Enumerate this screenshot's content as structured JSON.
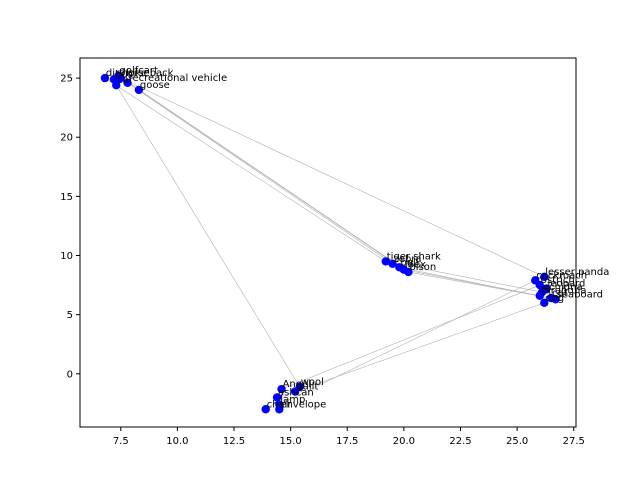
{
  "chart_data": {
    "type": "scatter",
    "title": "",
    "xlabel": "",
    "ylabel": "",
    "xlim": [
      5.7,
      27.6
    ],
    "ylim": [
      -4.5,
      26.7
    ],
    "xticks": [
      7.5,
      10.0,
      12.5,
      15.0,
      17.5,
      20.0,
      22.5,
      25.0,
      27.5
    ],
    "xtick_labels": [
      "7.5",
      "10.0",
      "12.5",
      "15.0",
      "17.5",
      "20.0",
      "22.5",
      "25.0",
      "27.5"
    ],
    "yticks": [
      0,
      5,
      10,
      15,
      20,
      25
    ],
    "ytick_labels": [
      "0",
      "5",
      "10",
      "15",
      "20",
      "25"
    ],
    "grid": false,
    "point_color": "#0000ff",
    "line_color": "#b0b0b0",
    "points": [
      {
        "label": "dirt bike",
        "x": 6.8,
        "y": 25.0
      },
      {
        "label": "golfcart",
        "x": 7.4,
        "y": 25.2
      },
      {
        "label": "horseback",
        "x": 7.5,
        "y": 25.0
      },
      {
        "label": "bus",
        "x": 7.2,
        "y": 24.9
      },
      {
        "label": "recreational vehicle",
        "x": 7.8,
        "y": 24.6
      },
      {
        "label": "goose",
        "x": 8.3,
        "y": 24.0
      },
      {
        "label": "car",
        "x": 7.3,
        "y": 24.4
      },
      {
        "label": "tiger shark",
        "x": 19.2,
        "y": 9.5
      },
      {
        "label": "zebra",
        "x": 19.5,
        "y": 9.3
      },
      {
        "label": "bull",
        "x": 19.8,
        "y": 9.0
      },
      {
        "label": "ibex",
        "x": 20.0,
        "y": 8.8
      },
      {
        "label": "bison",
        "x": 20.2,
        "y": 8.6
      },
      {
        "label": "lesser panda",
        "x": 26.2,
        "y": 8.2
      },
      {
        "label": "cockroach",
        "x": 25.8,
        "y": 7.9
      },
      {
        "label": "ostrich",
        "x": 26.0,
        "y": 7.5
      },
      {
        "label": "leopard",
        "x": 26.3,
        "y": 7.2
      },
      {
        "label": "echidna",
        "x": 26.1,
        "y": 6.9
      },
      {
        "label": "tarantula",
        "x": 26.0,
        "y": 6.6
      },
      {
        "label": "cat",
        "x": 26.5,
        "y": 6.4
      },
      {
        "label": "seaboard",
        "x": 26.7,
        "y": 6.3
      },
      {
        "label": "dog",
        "x": 26.2,
        "y": 6.0
      },
      {
        "label": "wool",
        "x": 15.4,
        "y": -1.1
      },
      {
        "label": "Angel",
        "x": 14.6,
        "y": -1.3
      },
      {
        "label": "quilt",
        "x": 15.2,
        "y": -1.5
      },
      {
        "label": "ashcan",
        "x": 14.4,
        "y": -2.0
      },
      {
        "label": "lamp",
        "x": 14.5,
        "y": -2.6
      },
      {
        "label": "envelope",
        "x": 14.5,
        "y": -3.0
      },
      {
        "label": "chair",
        "x": 13.9,
        "y": -3.0
      }
    ],
    "edges": [
      [
        "dirt bike",
        "tiger shark"
      ],
      [
        "golfcart",
        "bison"
      ],
      [
        "recreational vehicle",
        "zebra"
      ],
      [
        "goose",
        "ibex"
      ],
      [
        "horseback",
        "lesser panda"
      ],
      [
        "car",
        "wool"
      ],
      [
        "bull",
        "seaboard"
      ],
      [
        "bison",
        "cat"
      ],
      [
        "tiger shark",
        "echidna"
      ],
      [
        "ibex",
        "tarantula"
      ],
      [
        "cockroach",
        "lamp"
      ],
      [
        "ostrich",
        "Angel"
      ],
      [
        "dog",
        "quilt"
      ],
      [
        "chair",
        "wool"
      ]
    ]
  }
}
